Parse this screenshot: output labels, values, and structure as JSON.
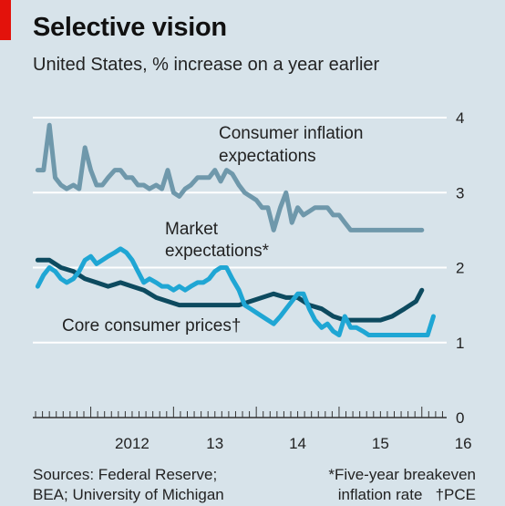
{
  "header": {
    "title": "Selective vision",
    "subtitle": "United States, % increase on a year earlier"
  },
  "footer": {
    "sources_line1": "Sources: Federal Reserve;",
    "sources_line2": "BEA; University of Michigan",
    "footnote_line1": "*Five-year breakeven",
    "footnote_line2": "inflation rate",
    "footnote_line3": "†PCE"
  },
  "colors": {
    "background": "#d7e3ea",
    "consumer": "#6f98ab",
    "market": "#1fa6d4",
    "core": "#0d4a5f",
    "accent": "#e3120b"
  },
  "chart_data": {
    "type": "line",
    "title": "Selective vision",
    "subtitle": "United States, % increase on a year earlier",
    "x_ticks": [
      "2012",
      "13",
      "14",
      "15",
      "16"
    ],
    "x_tick_values": [
      2012,
      2013,
      2014,
      2015,
      2016
    ],
    "xlim": [
      2011.3,
      2016.3
    ],
    "ylim": [
      0,
      4
    ],
    "y_ticks": [
      "0",
      "1",
      "2",
      "3",
      "4"
    ],
    "y_tick_values": [
      0,
      1,
      2,
      3,
      4
    ],
    "grid": true,
    "annotations": [
      {
        "text1": "Consumer inflation",
        "text2": "expectations",
        "series": "consumer"
      },
      {
        "text1": "Market",
        "text2": "expectations*",
        "series": "market"
      },
      {
        "text1": "Core consumer prices†",
        "text2": "",
        "series": "core"
      }
    ],
    "series": [
      {
        "key": "consumer",
        "x": [
          2011.36,
          2011.43,
          2011.5,
          2011.57,
          2011.64,
          2011.71,
          2011.79,
          2011.86,
          2011.93,
          2012.0,
          2012.07,
          2012.14,
          2012.21,
          2012.29,
          2012.36,
          2012.43,
          2012.5,
          2012.57,
          2012.64,
          2012.71,
          2012.79,
          2012.86,
          2012.93,
          2013.0,
          2013.07,
          2013.14,
          2013.21,
          2013.29,
          2013.36,
          2013.43,
          2013.5,
          2013.57,
          2013.64,
          2013.71,
          2013.79,
          2013.86,
          2013.93,
          2014.0,
          2014.07,
          2014.14,
          2014.21,
          2014.29,
          2014.36,
          2014.43,
          2014.5,
          2014.57,
          2014.64,
          2014.71,
          2014.79,
          2014.86,
          2014.93,
          2015.0,
          2015.07,
          2015.14,
          2015.21,
          2015.29,
          2015.36,
          2015.43,
          2015.5,
          2015.57,
          2015.64,
          2015.71,
          2015.79,
          2015.86,
          2015.93,
          2016.0
        ],
        "y": [
          3.3,
          3.3,
          3.9,
          3.2,
          3.1,
          3.05,
          3.1,
          3.05,
          3.6,
          3.3,
          3.1,
          3.1,
          3.2,
          3.3,
          3.3,
          3.2,
          3.2,
          3.1,
          3.1,
          3.05,
          3.1,
          3.05,
          3.3,
          3.0,
          2.95,
          3.05,
          3.1,
          3.2,
          3.2,
          3.2,
          3.3,
          3.15,
          3.3,
          3.25,
          3.1,
          3.0,
          2.95,
          2.9,
          2.8,
          2.8,
          2.5,
          2.8,
          3.0,
          2.6,
          2.8,
          2.7,
          2.75,
          2.8,
          2.8,
          2.8,
          2.7,
          2.7,
          2.6,
          2.5,
          2.5,
          2.5,
          2.5,
          2.5,
          2.5,
          2.5,
          2.5,
          2.5,
          2.5,
          2.5,
          2.5,
          2.5
        ]
      },
      {
        "key": "market",
        "x": [
          2011.36,
          2011.43,
          2011.5,
          2011.57,
          2011.64,
          2011.71,
          2011.79,
          2011.86,
          2011.93,
          2012.0,
          2012.07,
          2012.14,
          2012.21,
          2012.29,
          2012.36,
          2012.43,
          2012.5,
          2012.57,
          2012.64,
          2012.71,
          2012.79,
          2012.86,
          2012.93,
          2013.0,
          2013.07,
          2013.14,
          2013.21,
          2013.29,
          2013.36,
          2013.43,
          2013.5,
          2013.57,
          2013.64,
          2013.71,
          2013.79,
          2013.86,
          2013.93,
          2014.0,
          2014.07,
          2014.14,
          2014.21,
          2014.29,
          2014.36,
          2014.43,
          2014.5,
          2014.57,
          2014.64,
          2014.71,
          2014.79,
          2014.86,
          2014.93,
          2015.0,
          2015.07,
          2015.14,
          2015.21,
          2015.29,
          2015.36,
          2015.43,
          2015.5,
          2015.57,
          2015.64,
          2015.71,
          2015.79,
          2015.86,
          2015.93,
          2016.0,
          2016.07,
          2016.14
        ],
        "y": [
          1.75,
          1.9,
          2.0,
          1.95,
          1.85,
          1.8,
          1.85,
          1.95,
          2.1,
          2.15,
          2.05,
          2.1,
          2.15,
          2.2,
          2.25,
          2.2,
          2.1,
          1.95,
          1.8,
          1.85,
          1.8,
          1.75,
          1.75,
          1.7,
          1.75,
          1.7,
          1.75,
          1.8,
          1.8,
          1.85,
          1.95,
          2.0,
          2.0,
          1.85,
          1.7,
          1.5,
          1.45,
          1.4,
          1.35,
          1.3,
          1.25,
          1.35,
          1.45,
          1.55,
          1.65,
          1.65,
          1.45,
          1.3,
          1.2,
          1.25,
          1.15,
          1.1,
          1.35,
          1.2,
          1.2,
          1.15,
          1.1,
          1.1,
          1.1,
          1.1,
          1.1,
          1.1,
          1.1,
          1.1,
          1.1,
          1.1,
          1.1,
          1.35
        ]
      },
      {
        "key": "core",
        "x": [
          2011.36,
          2011.5,
          2011.64,
          2011.79,
          2011.93,
          2012.07,
          2012.21,
          2012.36,
          2012.5,
          2012.64,
          2012.79,
          2012.93,
          2013.07,
          2013.21,
          2013.36,
          2013.5,
          2013.64,
          2013.79,
          2013.93,
          2014.07,
          2014.21,
          2014.36,
          2014.5,
          2014.64,
          2014.79,
          2014.93,
          2015.07,
          2015.21,
          2015.36,
          2015.5,
          2015.64,
          2015.79,
          2015.93,
          2016.0
        ],
        "y": [
          2.1,
          2.1,
          2.0,
          1.95,
          1.85,
          1.8,
          1.75,
          1.8,
          1.75,
          1.7,
          1.6,
          1.55,
          1.5,
          1.5,
          1.5,
          1.5,
          1.5,
          1.5,
          1.55,
          1.6,
          1.65,
          1.6,
          1.6,
          1.5,
          1.45,
          1.35,
          1.3,
          1.3,
          1.3,
          1.3,
          1.35,
          1.45,
          1.55,
          1.7
        ]
      }
    ]
  }
}
